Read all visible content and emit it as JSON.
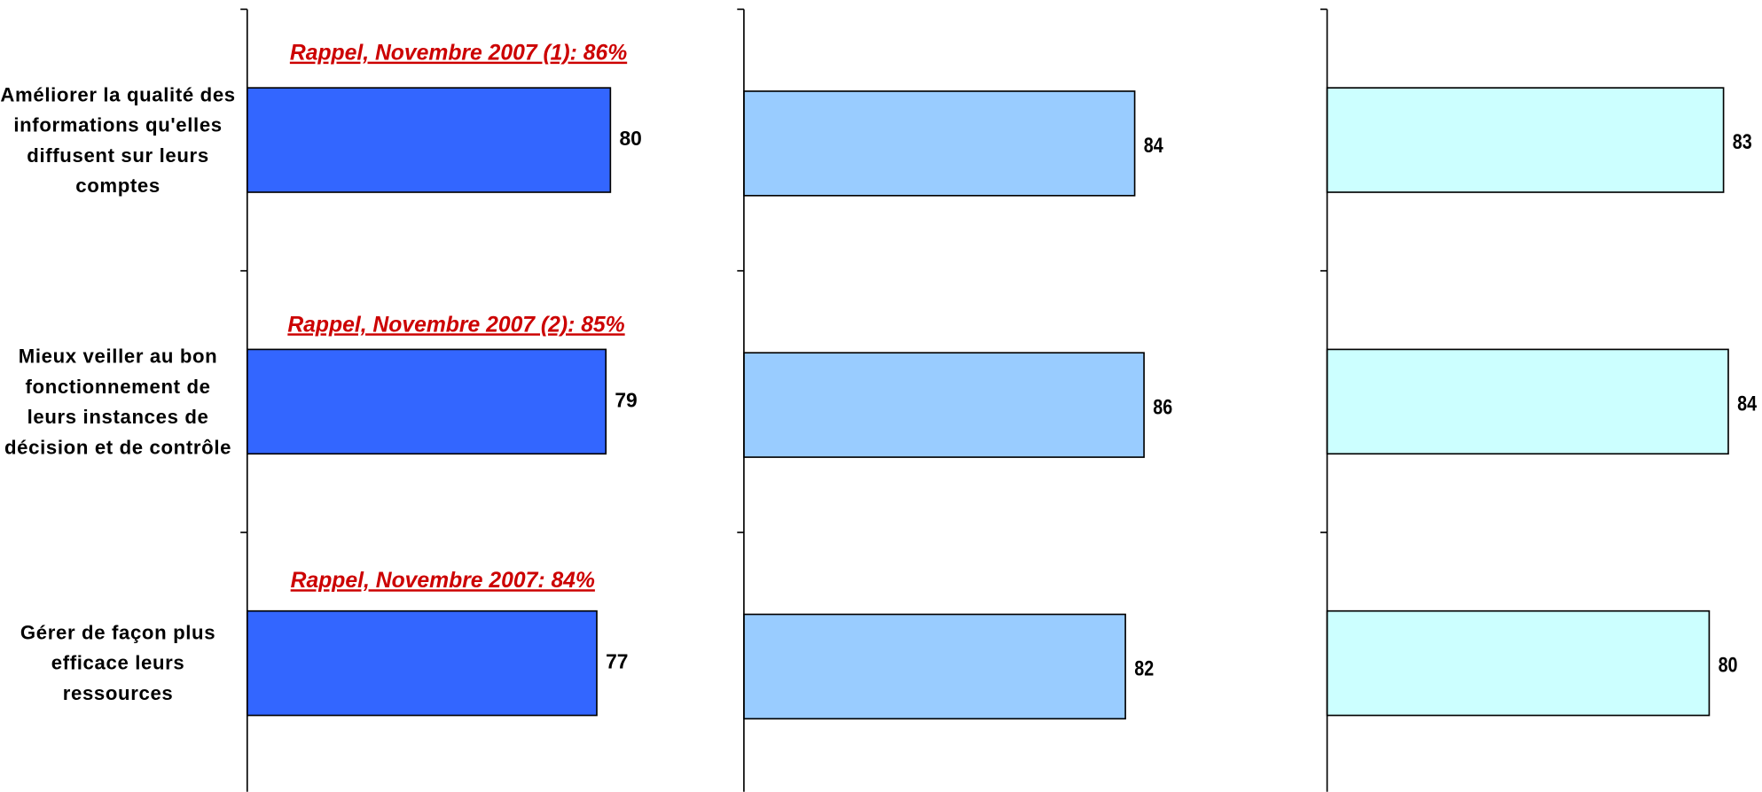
{
  "chart_data": [
    {
      "type": "bar",
      "categories": [
        "Améliorer la qualité des informations qu'elles diffusent sur leurs comptes",
        "Mieux veiller au bon fonctionnement de leurs instances de décision et de contrôle",
        "Gérer de façon plus efficace leurs ressources"
      ],
      "values": [
        80,
        79,
        77
      ],
      "color": "#3366ff",
      "xlim": [
        0,
        100
      ],
      "annotations": [
        "Rappel, Novembre 2007 (1): 86%",
        "Rappel, Novembre 2007 (2): 85%",
        "Rappel, Novembre 2007: 84%"
      ]
    },
    {
      "type": "bar",
      "values": [
        84,
        86,
        82
      ],
      "color": "#99ccff",
      "xlim": [
        0,
        100
      ]
    },
    {
      "type": "bar",
      "values": [
        83,
        84,
        80
      ],
      "color": "#ccffff",
      "xlim": [
        0,
        100
      ]
    }
  ]
}
